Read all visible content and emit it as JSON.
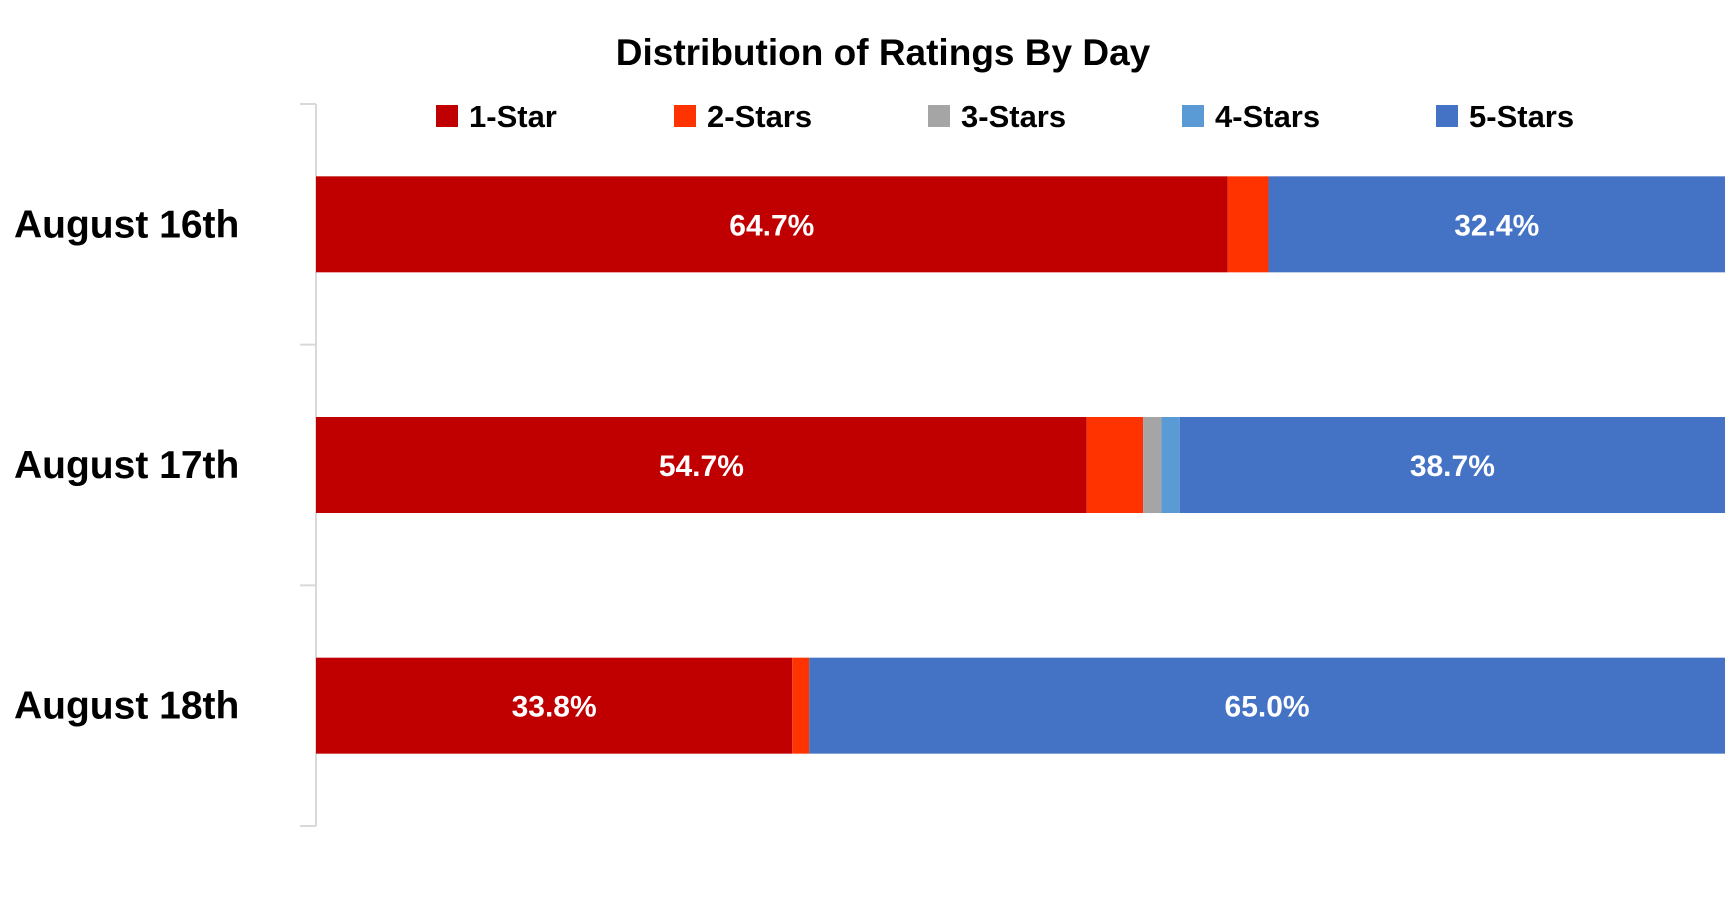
{
  "chart_data": {
    "type": "bar",
    "orientation": "horizontal",
    "stacked": true,
    "normalized": true,
    "title": "Distribution of Ratings By Day",
    "xlabel": "",
    "ylabel": "",
    "xlim": [
      0,
      100
    ],
    "grid": false,
    "legend_position": "top",
    "categories": [
      "August 16th",
      "August 17th",
      "August 18th"
    ],
    "series": [
      {
        "name": "1-Star",
        "color": "#C00000",
        "values": [
          64.7,
          54.7,
          33.8
        ],
        "data_labels": [
          "64.7%",
          "54.7%",
          "33.8%"
        ]
      },
      {
        "name": "2-Stars",
        "color": "#FF3300",
        "values": [
          2.9,
          4.0,
          1.2
        ],
        "data_labels": [
          "",
          "",
          ""
        ]
      },
      {
        "name": "3-Stars",
        "color": "#A5A5A5",
        "values": [
          0.0,
          1.3,
          0.0
        ],
        "data_labels": [
          "",
          "",
          ""
        ]
      },
      {
        "name": "4-Stars",
        "color": "#5B9BD5",
        "values": [
          0.0,
          1.3,
          0.0
        ],
        "data_labels": [
          "",
          "",
          ""
        ]
      },
      {
        "name": "5-Stars",
        "color": "#4472C4",
        "values": [
          32.4,
          38.7,
          65.0
        ],
        "data_labels": [
          "32.4%",
          "38.7%",
          "65.0%"
        ]
      }
    ]
  }
}
